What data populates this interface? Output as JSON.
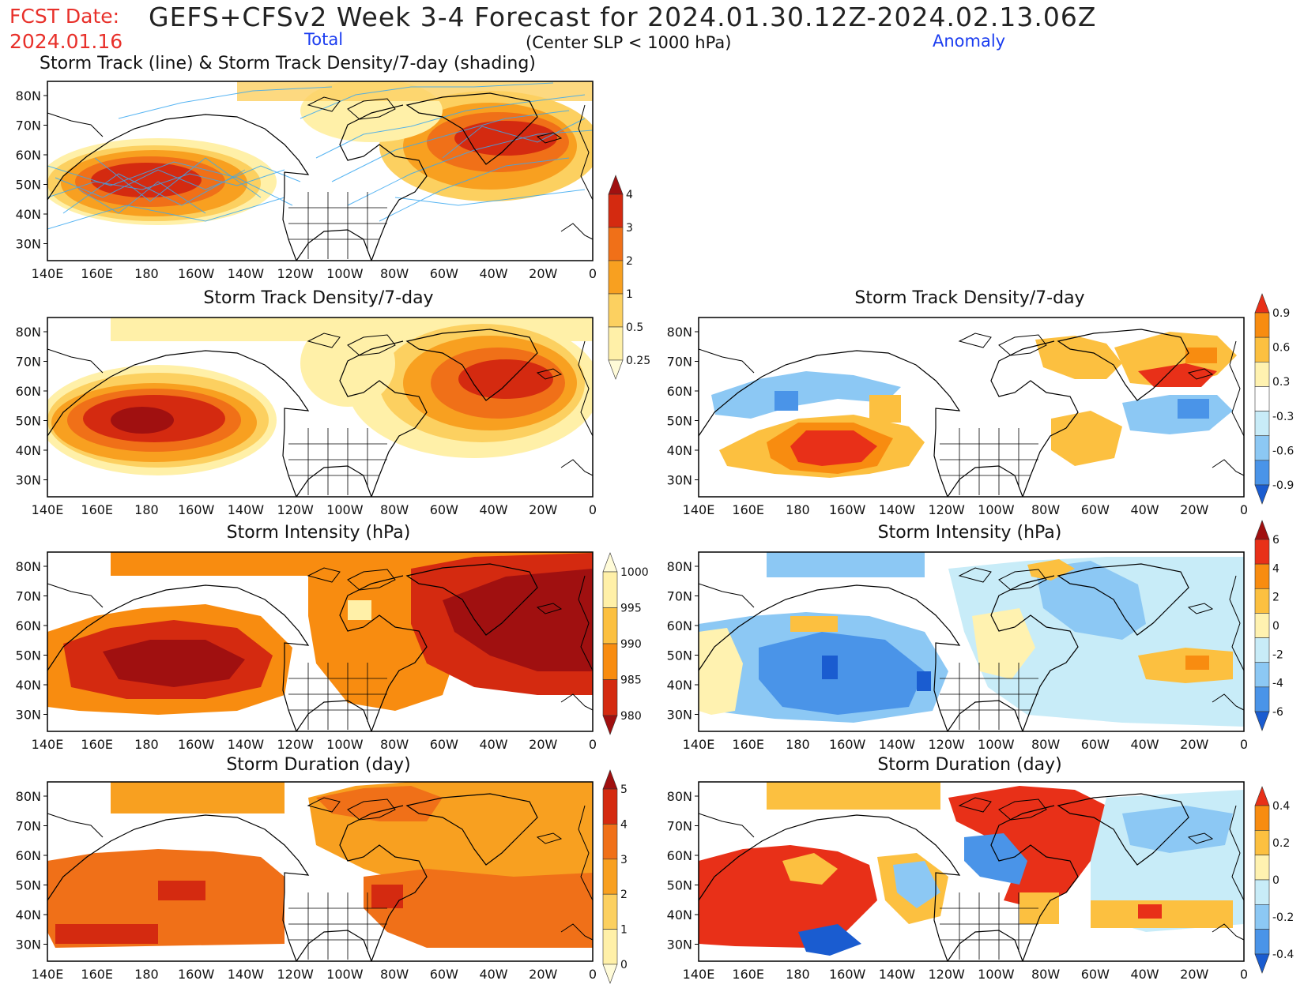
{
  "header": {
    "fcst_label": "FCST Date:",
    "fcst_date": "2024.01.16",
    "title": "GEFS+CFSv2 Week 3-4 Forecast for 2024.01.30.12Z-2024.02.13.06Z",
    "subtitle": "(Center SLP < 1000 hPa)",
    "total_label": "Total",
    "anomaly_label": "Anomaly"
  },
  "axes": {
    "lon_labels": [
      "140E",
      "160E",
      "180",
      "160W",
      "140W",
      "120W",
      "100W",
      "80W",
      "60W",
      "40W",
      "20W",
      "0"
    ],
    "lat_labels": [
      "80N",
      "70N",
      "60N",
      "50N",
      "40N",
      "30N"
    ]
  },
  "panels": {
    "track": {
      "title": "Storm Track (line) & Storm Track Density/7-day (shading)"
    },
    "density_total": {
      "title": "Storm Track Density/7-day"
    },
    "density_anom": {
      "title": "Storm Track Density/7-day"
    },
    "intensity_total": {
      "title": "Storm Intensity (hPa)"
    },
    "intensity_anom": {
      "title": "Storm Intensity (hPa)"
    },
    "duration_total": {
      "title": "Storm Duration (day)"
    },
    "duration_anom": {
      "title": "Storm Duration (day)"
    }
  },
  "colorbars": {
    "density_total": {
      "labels": [
        "4",
        "3",
        "2",
        "1",
        "0.5",
        "0.25"
      ],
      "colors": [
        "#a01010",
        "#d42a10",
        "#f07018",
        "#f8a020",
        "#fcd060",
        "#fff0a8",
        "#fffbd8"
      ]
    },
    "density_anom": {
      "labels": [
        "0.9",
        "0.6",
        "0.3",
        "-0.3",
        "-0.6",
        "-0.9"
      ],
      "colors": [
        "#e83018",
        "#f88c10",
        "#fcc040",
        "#fff2b0",
        "#ffffff",
        "#c8ecf8",
        "#8cc8f4",
        "#4a94e8",
        "#1a5cd0"
      ]
    },
    "intensity_total": {
      "labels": [
        "1000",
        "995",
        "990",
        "985",
        "980"
      ],
      "colors": [
        "#fffbd8",
        "#fff0a8",
        "#fcc040",
        "#f88c10",
        "#d42a10",
        "#a01010"
      ]
    },
    "intensity_anom": {
      "labels": [
        "6",
        "4",
        "2",
        "0",
        "-2",
        "-4",
        "-6"
      ],
      "colors": [
        "#a01010",
        "#e83018",
        "#f88c10",
        "#fcc040",
        "#fff2b0",
        "#c8ecf8",
        "#8cc8f4",
        "#4a94e8",
        "#1a5cd0"
      ]
    },
    "duration_total": {
      "labels": [
        "5",
        "4",
        "3",
        "2",
        "1",
        "0"
      ],
      "colors": [
        "#a01010",
        "#d42a10",
        "#f07018",
        "#f8a020",
        "#fcd060",
        "#fff0a8",
        "#fffbd8"
      ]
    },
    "duration_anom": {
      "labels": [
        "0.4",
        "0.2",
        "0",
        "-0.2",
        "-0.4"
      ],
      "colors": [
        "#e83018",
        "#f88c10",
        "#fcc040",
        "#fff2b0",
        "#c8ecf8",
        "#8cc8f4",
        "#4a94e8",
        "#1a5cd0"
      ]
    }
  },
  "palette": {
    "dark_red": "#a01010",
    "red": "#d42a10",
    "orange_red": "#f07018",
    "orange": "#f8a020",
    "light_orange": "#fcd060",
    "yellow": "#fff0a8",
    "cream": "#fffbd8",
    "light_blue": "#c8ecf8",
    "blue": "#8cc8f4",
    "mid_blue": "#4a94e8",
    "dark_blue": "#1a5cd0",
    "track_line": "#3aa8f0"
  }
}
